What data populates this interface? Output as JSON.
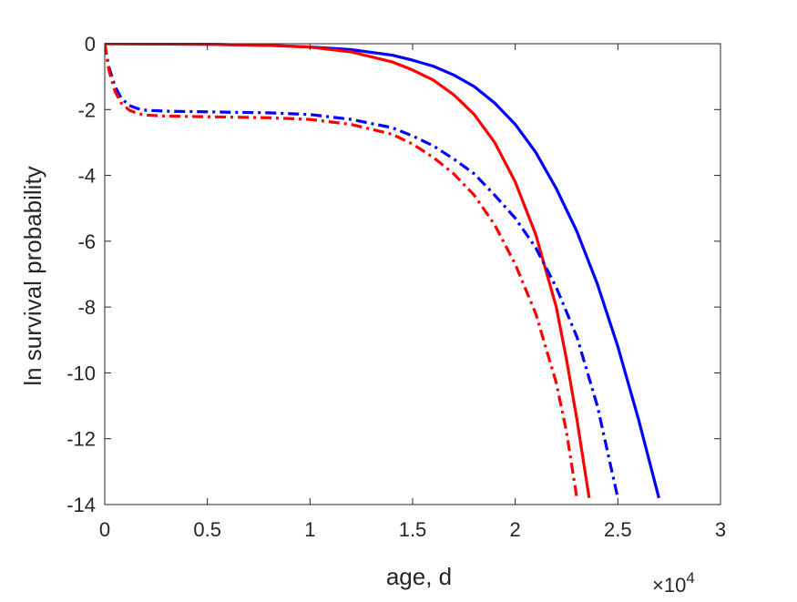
{
  "chart_data": {
    "type": "line",
    "xlabel": "age, d",
    "ylabel": "ln survival probability",
    "x_multiplier_base": "×10",
    "x_multiplier_exp": "4",
    "xlim": [
      0,
      30000
    ],
    "ylim": [
      -14,
      0
    ],
    "xticks": [
      0,
      5000,
      10000,
      15000,
      20000,
      25000,
      30000
    ],
    "xtick_labels": [
      "0",
      "0.5",
      "1",
      "1.5",
      "2",
      "2.5",
      "3"
    ],
    "yticks": [
      -14,
      -12,
      -10,
      -8,
      -6,
      -4,
      -2,
      0
    ],
    "ytick_labels": [
      "-14",
      "-12",
      "-10",
      "-8",
      "-6",
      "-4",
      "-2",
      "0"
    ],
    "grid": false,
    "series": [
      {
        "color": "#0000ff",
        "style": "solid",
        "x": [
          0,
          5000,
          8000,
          10000,
          12000,
          14000,
          15000,
          16000,
          17000,
          18000,
          19000,
          20000,
          21000,
          22000,
          23000,
          24000,
          25000,
          26000,
          27000
        ],
        "y": [
          0,
          -0.02,
          -0.05,
          -0.1,
          -0.18,
          -0.35,
          -0.5,
          -0.68,
          -0.95,
          -1.3,
          -1.8,
          -2.45,
          -3.3,
          -4.4,
          -5.7,
          -7.3,
          -9.2,
          -11.4,
          -13.8
        ]
      },
      {
        "color": "#ff0000",
        "style": "solid",
        "x": [
          0,
          5000,
          8000,
          10000,
          12000,
          14000,
          15000,
          16000,
          17000,
          18000,
          19000,
          20000,
          21000,
          22000,
          22500,
          23000,
          23600
        ],
        "y": [
          0,
          -0.02,
          -0.05,
          -0.1,
          -0.25,
          -0.55,
          -0.8,
          -1.1,
          -1.55,
          -2.15,
          -3.0,
          -4.2,
          -5.8,
          -8.0,
          -9.6,
          -11.4,
          -13.8
        ]
      },
      {
        "color": "#0000ff",
        "style": "dashdot",
        "x": [
          0,
          200,
          500,
          800,
          1200,
          1600,
          2000,
          3000,
          5000,
          8000,
          10000,
          12000,
          14000,
          15000,
          16000,
          17000,
          18000,
          19000,
          20000,
          21000,
          22000,
          23000,
          24000,
          25000
        ],
        "y": [
          0,
          -0.7,
          -1.3,
          -1.65,
          -1.88,
          -1.97,
          -2.02,
          -2.05,
          -2.07,
          -2.1,
          -2.15,
          -2.3,
          -2.55,
          -2.8,
          -3.1,
          -3.5,
          -3.95,
          -4.6,
          -5.3,
          -6.2,
          -7.4,
          -8.9,
          -11.0,
          -13.8
        ]
      },
      {
        "color": "#ff0000",
        "style": "dashdot",
        "x": [
          0,
          200,
          500,
          800,
          1200,
          1600,
          2000,
          3000,
          5000,
          8000,
          10000,
          12000,
          14000,
          15000,
          16000,
          17000,
          18000,
          19000,
          20000,
          21000,
          22000,
          22500,
          23000
        ],
        "y": [
          0,
          -0.8,
          -1.45,
          -1.8,
          -2.02,
          -2.12,
          -2.17,
          -2.2,
          -2.22,
          -2.25,
          -2.3,
          -2.45,
          -2.75,
          -3.05,
          -3.45,
          -3.95,
          -4.6,
          -5.5,
          -6.7,
          -8.2,
          -10.3,
          -11.8,
          -13.8
        ]
      }
    ]
  }
}
